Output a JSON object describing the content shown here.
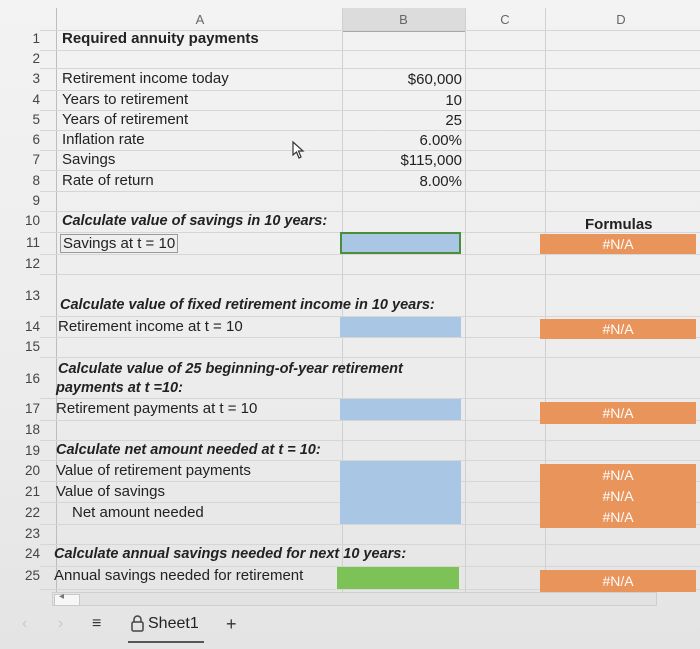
{
  "columns": [
    "A",
    "B",
    "C",
    "D"
  ],
  "rows": {
    "r1": {
      "num": "1",
      "a": "Required annuity payments"
    },
    "r2": {
      "num": "2"
    },
    "r3": {
      "num": "3",
      "a": "Retirement income today",
      "b": "$60,000"
    },
    "r4": {
      "num": "4",
      "a": "Years to retirement",
      "b": "10"
    },
    "r5": {
      "num": "5",
      "a": "Years of retirement",
      "b": "25"
    },
    "r6": {
      "num": "6",
      "a": "Inflation rate",
      "b": "6.00%"
    },
    "r7": {
      "num": "7",
      "a": "Savings",
      "b": "$115,000"
    },
    "r8": {
      "num": "8",
      "a": "Rate of return",
      "b": "8.00%"
    },
    "r9": {
      "num": "9"
    },
    "r10": {
      "num": "10",
      "a": "Calculate value of savings in 10 years:",
      "d": "Formulas"
    },
    "r11": {
      "num": "11",
      "a": "Savings at t = 10",
      "d": "#N/A"
    },
    "r12": {
      "num": "12"
    },
    "r13": {
      "num": "13",
      "a": "Calculate value of fixed retirement income in 10 years:"
    },
    "r14": {
      "num": "14",
      "a": "Retirement income at t = 10",
      "d": "#N/A"
    },
    "r15": {
      "num": "15"
    },
    "r16": {
      "num": "16",
      "a_line1": "Calculate value of 25 beginning-of-year retirement",
      "a_line2": "payments at t =10:"
    },
    "r17": {
      "num": "17",
      "a": "Retirement payments at t = 10",
      "d": "#N/A"
    },
    "r18": {
      "num": "18"
    },
    "r19": {
      "num": "19",
      "a": "Calculate net amount needed at t = 10:"
    },
    "r20": {
      "num": "20",
      "a": "Value of retirement payments",
      "d": "#N/A"
    },
    "r21": {
      "num": "21",
      "a": "Value of savings",
      "d": "#N/A"
    },
    "r22": {
      "num": "22",
      "a": "Net amount needed",
      "d": "#N/A"
    },
    "r23": {
      "num": "23"
    },
    "r24": {
      "num": "24",
      "a": "Calculate annual savings needed for next 10 years:"
    },
    "r25": {
      "num": "25",
      "a": "Annual savings needed for retirement",
      "d": "#N/A"
    }
  },
  "tabs": {
    "sheet1": "Sheet1",
    "add": "+",
    "menu": "≡"
  },
  "colors": {
    "input_blue": "#a9c7e4",
    "formula_orange": "#e8945a",
    "answer_green": "#7cc257"
  },
  "icons": [
    "chevron-left-icon",
    "chevron-right-icon",
    "sheet-list-icon",
    "lock-icon",
    "add-sheet-icon",
    "cursor-arrow-icon"
  ]
}
